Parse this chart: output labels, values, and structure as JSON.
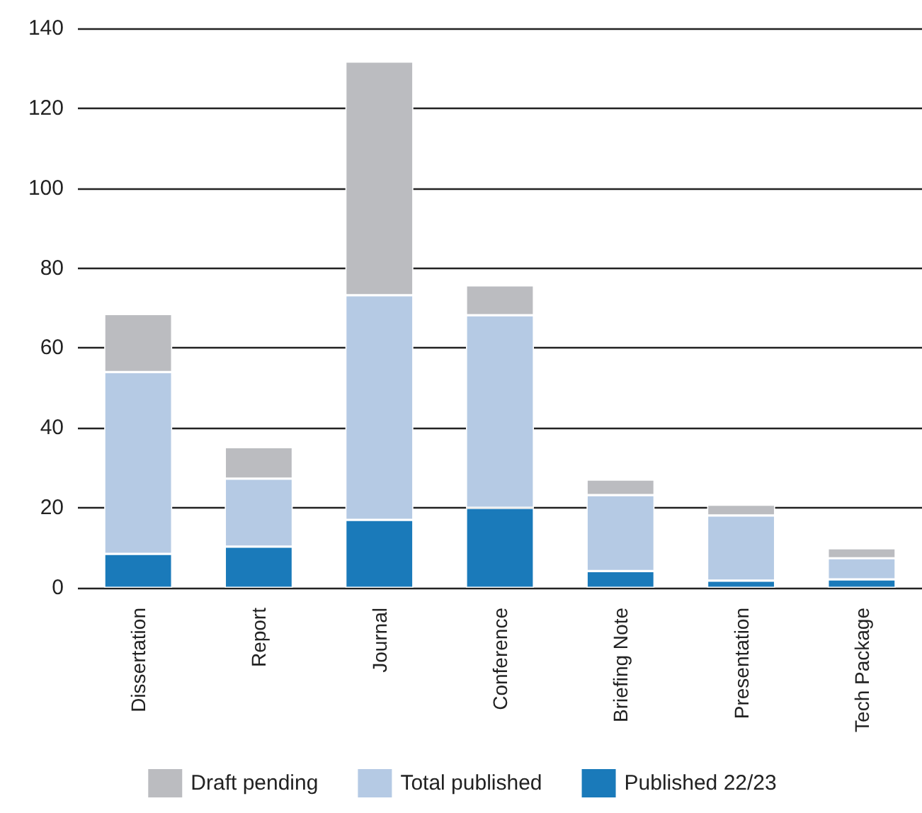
{
  "chart_data": {
    "type": "bar",
    "stacked": true,
    "categories": [
      "Dissertation",
      "Report",
      "Journal",
      "Conference",
      "Briefing Note",
      "Presentation",
      "Tech Package"
    ],
    "series": [
      {
        "name": "Published 22/23",
        "color": "#1a7aba",
        "values": [
          8.5,
          10.3,
          17,
          20,
          4.2,
          1.8,
          2.1
        ]
      },
      {
        "name": "Total published",
        "color": "#b5cae4",
        "values": [
          45.5,
          17,
          56.2,
          48.2,
          19,
          16.3,
          5.3
        ]
      },
      {
        "name": "Draft pending",
        "color": "#bbbcc0",
        "values": [
          14.5,
          7.9,
          58.5,
          7.5,
          3.9,
          2.7,
          2.5
        ]
      }
    ],
    "ylim": [
      0,
      140
    ],
    "yticks": [
      0,
      20,
      40,
      60,
      80,
      100,
      120,
      140
    ],
    "grid": "y",
    "legend": "bottom"
  }
}
